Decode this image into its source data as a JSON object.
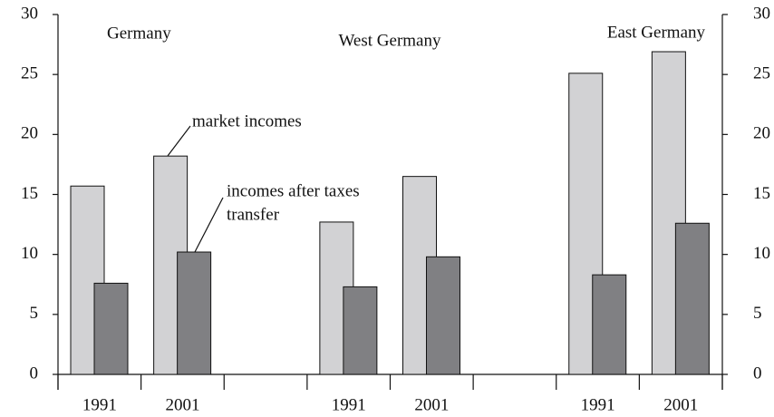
{
  "chart_data": {
    "type": "bar",
    "groups": [
      "Germany",
      "West Germany",
      "East Germany"
    ],
    "categories": [
      "1991",
      "2001",
      null,
      "1991",
      "2001",
      null,
      "1991",
      "2001"
    ],
    "series": [
      {
        "name": "market incomes",
        "color": "#d2d2d4",
        "values": [
          15.7,
          18.2,
          null,
          12.7,
          16.5,
          null,
          25.1,
          26.9
        ]
      },
      {
        "name": "incomes after taxes transfer",
        "color": "#808083",
        "values": [
          7.6,
          10.2,
          null,
          7.3,
          9.8,
          null,
          8.3,
          12.6
        ]
      }
    ],
    "annotations": [
      "market incomes",
      "incomes after taxes",
      "transfer"
    ],
    "ylim": [
      0,
      30
    ],
    "yticks": [
      0,
      5,
      10,
      15,
      20,
      25,
      30
    ],
    "y2lim": [
      0,
      30
    ],
    "y2ticks": [
      0,
      5,
      10,
      15,
      20,
      25,
      30
    ]
  }
}
